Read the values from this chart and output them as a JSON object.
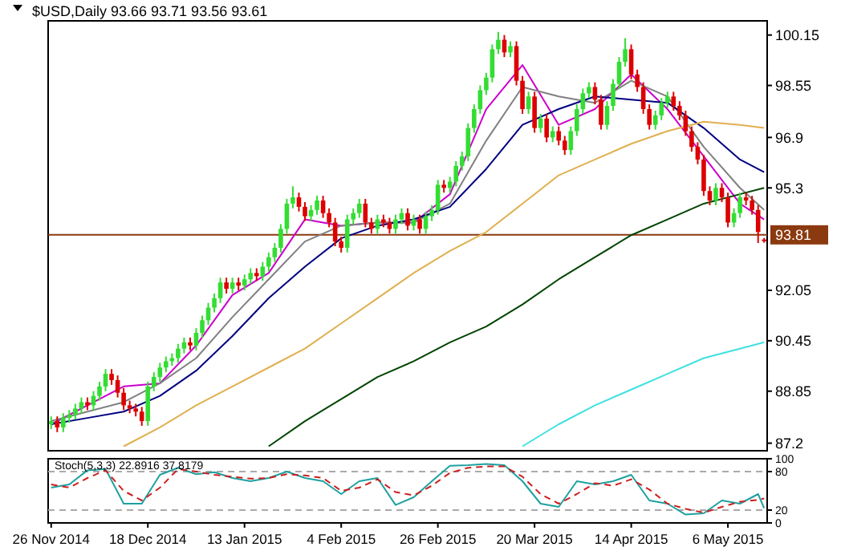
{
  "chart_data": [
    {
      "type": "candlestick",
      "title": "$USD,Daily  93.66 93.71 93.56 93.61",
      "categories": [
        null,
        null,
        null,
        null,
        null,
        null,
        null,
        null,
        null,
        null,
        null,
        null,
        null,
        null,
        null,
        null,
        null,
        null,
        null,
        null,
        null,
        null,
        null,
        null,
        null,
        null,
        null,
        null,
        null,
        null,
        null,
        null,
        null,
        null,
        null,
        null,
        null,
        null,
        null,
        null,
        null,
        null,
        null,
        null,
        null,
        null,
        null,
        null,
        null,
        null,
        null,
        null,
        null,
        null,
        null,
        null,
        null,
        null,
        null,
        null,
        null,
        null,
        null,
        null,
        null,
        null,
        null,
        null,
        null,
        null,
        null,
        null,
        null,
        null,
        null,
        null,
        null,
        null,
        null,
        null,
        null,
        null,
        null,
        null,
        null,
        null,
        null,
        null,
        null,
        null,
        null,
        null,
        null,
        null,
        null,
        null,
        null,
        null,
        null,
        null,
        null,
        null,
        null,
        null,
        null,
        null,
        null,
        null,
        null,
        null,
        null,
        null,
        null,
        null,
        null,
        null,
        null,
        null,
        null
      ],
      "ohlc": [
        [
          87.8,
          88.05,
          87.65,
          87.9
        ],
        [
          87.9,
          88.05,
          87.55,
          87.7
        ],
        [
          87.7,
          88.15,
          87.55,
          88.0
        ],
        [
          88.0,
          88.25,
          87.85,
          88.1
        ],
        [
          88.1,
          88.45,
          87.95,
          88.3
        ],
        [
          88.3,
          88.65,
          88.15,
          88.5
        ],
        [
          88.5,
          88.65,
          88.25,
          88.4
        ],
        [
          88.4,
          88.85,
          88.25,
          88.7
        ],
        [
          88.7,
          89.15,
          88.55,
          89.0
        ],
        [
          89.0,
          89.55,
          88.85,
          89.4
        ],
        [
          89.4,
          89.55,
          89.05,
          89.2
        ],
        [
          89.2,
          89.35,
          88.65,
          88.8
        ],
        [
          88.8,
          88.95,
          88.25,
          88.4
        ],
        [
          88.4,
          88.55,
          88.15,
          88.3
        ],
        [
          88.3,
          88.45,
          88.05,
          88.2
        ],
        [
          88.2,
          88.35,
          87.75,
          87.9
        ],
        [
          87.9,
          89.15,
          87.75,
          89.0
        ],
        [
          89.0,
          89.45,
          88.85,
          89.3
        ],
        [
          89.3,
          89.75,
          89.15,
          89.6
        ],
        [
          89.6,
          89.95,
          89.45,
          89.8
        ],
        [
          89.8,
          90.05,
          89.65,
          89.9
        ],
        [
          89.9,
          90.35,
          89.75,
          90.2
        ],
        [
          90.2,
          90.55,
          90.05,
          90.4
        ],
        [
          90.4,
          90.55,
          90.15,
          90.3
        ],
        [
          90.3,
          90.85,
          90.15,
          90.7
        ],
        [
          90.7,
          91.25,
          90.55,
          91.1
        ],
        [
          91.1,
          91.65,
          90.95,
          91.5
        ],
        [
          91.5,
          91.95,
          91.35,
          91.8
        ],
        [
          91.8,
          92.45,
          91.65,
          92.3
        ],
        [
          92.3,
          92.45,
          91.95,
          92.1
        ],
        [
          92.1,
          92.45,
          91.95,
          92.3
        ],
        [
          92.3,
          92.45,
          92.05,
          92.2
        ],
        [
          92.2,
          92.55,
          92.05,
          92.4
        ],
        [
          92.4,
          92.75,
          92.25,
          92.6
        ],
        [
          92.6,
          92.75,
          92.35,
          92.5
        ],
        [
          92.5,
          92.95,
          92.35,
          92.8
        ],
        [
          92.8,
          93.25,
          92.65,
          93.1
        ],
        [
          93.1,
          93.55,
          92.95,
          93.4
        ],
        [
          93.4,
          94.15,
          93.25,
          94.0
        ],
        [
          94.0,
          94.95,
          93.85,
          94.8
        ],
        [
          94.8,
          95.35,
          94.65,
          95.0
        ],
        [
          95.0,
          95.15,
          94.55,
          94.7
        ],
        [
          94.7,
          94.85,
          94.25,
          94.4
        ],
        [
          94.4,
          94.75,
          94.25,
          94.6
        ],
        [
          94.6,
          95.05,
          94.45,
          94.9
        ],
        [
          94.9,
          95.05,
          94.35,
          94.5
        ],
        [
          94.5,
          94.65,
          94.05,
          94.2
        ],
        [
          94.2,
          94.35,
          93.45,
          93.6
        ],
        [
          93.6,
          93.75,
          93.25,
          93.4
        ],
        [
          93.4,
          94.45,
          93.25,
          94.3
        ],
        [
          94.3,
          94.65,
          94.15,
          94.5
        ],
        [
          94.5,
          94.95,
          94.35,
          94.8
        ],
        [
          94.8,
          94.95,
          94.05,
          94.2
        ],
        [
          94.2,
          94.35,
          93.85,
          94.0
        ],
        [
          94.0,
          94.45,
          93.85,
          94.3
        ],
        [
          94.3,
          94.45,
          94.05,
          94.2
        ],
        [
          94.2,
          94.35,
          93.85,
          94.0
        ],
        [
          94.0,
          94.45,
          93.85,
          94.3
        ],
        [
          94.3,
          94.65,
          94.15,
          94.5
        ],
        [
          94.5,
          94.65,
          93.95,
          94.1
        ],
        [
          94.1,
          94.45,
          93.95,
          94.3
        ],
        [
          94.3,
          94.45,
          93.85,
          94.0
        ],
        [
          94.0,
          94.55,
          93.85,
          94.4
        ],
        [
          94.4,
          94.75,
          94.25,
          94.6
        ],
        [
          94.6,
          95.55,
          94.45,
          95.4
        ],
        [
          95.4,
          95.55,
          95.15,
          95.3
        ],
        [
          95.3,
          95.65,
          95.15,
          95.5
        ],
        [
          95.5,
          96.15,
          95.35,
          96.0
        ],
        [
          96.0,
          96.45,
          95.85,
          96.3
        ],
        [
          96.3,
          97.35,
          96.15,
          97.2
        ],
        [
          97.2,
          97.95,
          97.05,
          97.8
        ],
        [
          97.8,
          98.55,
          97.65,
          98.4
        ],
        [
          98.4,
          98.95,
          98.25,
          98.8
        ],
        [
          98.8,
          99.85,
          98.65,
          99.7
        ],
        [
          99.7,
          100.25,
          99.55,
          100.0
        ],
        [
          100.0,
          100.15,
          99.45,
          99.6
        ],
        [
          99.6,
          99.95,
          99.45,
          99.8
        ],
        [
          99.8,
          99.95,
          98.55,
          98.7
        ],
        [
          98.7,
          98.85,
          97.65,
          97.8
        ],
        [
          97.8,
          98.35,
          97.65,
          98.2
        ],
        [
          98.2,
          98.35,
          97.05,
          97.2
        ],
        [
          97.2,
          97.65,
          97.05,
          97.5
        ],
        [
          97.5,
          97.65,
          96.75,
          96.9
        ],
        [
          96.9,
          97.25,
          96.75,
          97.1
        ],
        [
          97.1,
          97.25,
          96.65,
          96.8
        ],
        [
          96.8,
          96.95,
          96.35,
          96.5
        ],
        [
          96.5,
          97.25,
          96.35,
          97.1
        ],
        [
          97.1,
          97.95,
          96.95,
          97.8
        ],
        [
          97.8,
          98.45,
          97.65,
          98.3
        ],
        [
          98.3,
          98.65,
          98.15,
          98.5
        ],
        [
          98.5,
          98.65,
          97.95,
          98.1
        ],
        [
          98.1,
          98.25,
          97.15,
          97.3
        ],
        [
          97.3,
          98.05,
          97.15,
          97.9
        ],
        [
          97.9,
          98.75,
          97.75,
          98.6
        ],
        [
          98.6,
          99.45,
          98.45,
          99.3
        ],
        [
          99.3,
          100.05,
          99.15,
          99.7
        ],
        [
          99.7,
          99.85,
          98.75,
          98.9
        ],
        [
          98.9,
          99.05,
          98.35,
          98.5
        ],
        [
          98.5,
          98.65,
          97.65,
          97.8
        ],
        [
          97.8,
          97.95,
          97.15,
          97.3
        ],
        [
          97.3,
          97.75,
          97.15,
          97.6
        ],
        [
          97.6,
          98.15,
          97.45,
          98.0
        ],
        [
          98.0,
          98.35,
          97.85,
          98.2
        ],
        [
          98.2,
          98.35,
          97.75,
          97.9
        ],
        [
          97.9,
          98.05,
          97.45,
          97.6
        ],
        [
          97.6,
          97.75,
          96.95,
          97.1
        ],
        [
          97.1,
          97.25,
          96.45,
          96.6
        ],
        [
          96.6,
          96.75,
          96.05,
          96.2
        ],
        [
          96.2,
          96.35,
          95.05,
          95.2
        ],
        [
          95.2,
          95.35,
          94.75,
          94.9
        ],
        [
          94.9,
          95.45,
          94.75,
          95.3
        ],
        [
          95.3,
          95.45,
          94.85,
          95.0
        ],
        [
          95.0,
          95.15,
          94.05,
          94.2
        ],
        [
          94.2,
          94.65,
          94.05,
          94.5
        ],
        [
          94.5,
          95.15,
          94.35,
          95.0
        ],
        [
          95.0,
          95.15,
          94.75,
          94.9
        ],
        [
          94.9,
          95.05,
          94.45,
          94.6
        ],
        [
          94.6,
          94.75,
          93.55,
          93.9
        ],
        [
          93.66,
          93.71,
          93.56,
          93.61
        ]
      ],
      "colors": [
        "#33dd33",
        "#dd0000",
        "#33dd33",
        "#33dd33",
        "#33dd33",
        "#33dd33",
        "#dd0000",
        "#33dd33",
        "#33dd33",
        "#33dd33",
        "#dd0000",
        "#dd0000",
        "#dd0000",
        "#dd0000",
        "#dd0000",
        "#dd0000",
        "#33dd33",
        "#33dd33",
        "#33dd33",
        "#33dd33",
        "#33dd33",
        "#33dd33",
        "#33dd33",
        "#dd0000",
        "#33dd33",
        "#33dd33",
        "#33dd33",
        "#33dd33",
        "#33dd33",
        "#dd0000",
        "#33dd33",
        "#dd0000",
        "#33dd33",
        "#33dd33",
        "#dd0000",
        "#33dd33",
        "#33dd33",
        "#33dd33",
        "#33dd33",
        "#33dd33",
        "#33dd33",
        "#dd0000",
        "#dd0000",
        "#33dd33",
        "#33dd33",
        "#dd0000",
        "#dd0000",
        "#dd0000",
        "#dd0000",
        "#33dd33",
        "#33dd33",
        "#33dd33",
        "#dd0000",
        "#dd0000",
        "#33dd33",
        "#dd0000",
        "#dd0000",
        "#33dd33",
        "#33dd33",
        "#dd0000",
        "#33dd33",
        "#dd0000",
        "#33dd33",
        "#33dd33",
        "#33dd33",
        "#dd0000",
        "#33dd33",
        "#33dd33",
        "#33dd33",
        "#33dd33",
        "#33dd33",
        "#33dd33",
        "#33dd33",
        "#33dd33",
        "#33dd33",
        "#dd0000",
        "#33dd33",
        "#dd0000",
        "#dd0000",
        "#33dd33",
        "#dd0000",
        "#33dd33",
        "#dd0000",
        "#33dd33",
        "#dd0000",
        "#dd0000",
        "#33dd33",
        "#33dd33",
        "#33dd33",
        "#33dd33",
        "#dd0000",
        "#dd0000",
        "#33dd33",
        "#33dd33",
        "#33dd33",
        "#33dd33",
        "#dd0000",
        "#dd0000",
        "#dd0000",
        "#dd0000",
        "#33dd33",
        "#33dd33",
        "#33dd33",
        "#dd0000",
        "#dd0000",
        "#dd0000",
        "#dd0000",
        "#dd0000",
        "#dd0000",
        "#dd0000",
        "#33dd33",
        "#dd0000",
        "#dd0000",
        "#33dd33",
        "#33dd33",
        "#dd0000",
        "#dd0000",
        "#dd0000",
        "#dd0000"
      ],
      "series": [
        {
          "type": "line",
          "color": "#cc00cc",
          "values": [
            87.8,
            null,
            null,
            null,
            null,
            null,
            88.4,
            null,
            null,
            null,
            null,
            null,
            89.0,
            null,
            null,
            null,
            null,
            null,
            89.1,
            null,
            null,
            null,
            null,
            null,
            90.3,
            null,
            null,
            null,
            null,
            null,
            91.9,
            null,
            null,
            null,
            null,
            null,
            92.6,
            null,
            null,
            null,
            null,
            null,
            94.3,
            null,
            null,
            null,
            null,
            null,
            94.1,
            null,
            null,
            null,
            null,
            null,
            94.2,
            null,
            null,
            null,
            null,
            null,
            94.2,
            null,
            null,
            null,
            null,
            null,
            95.1,
            null,
            null,
            null,
            null,
            null,
            97.8,
            null,
            null,
            null,
            null,
            null,
            99.2,
            null,
            null,
            null,
            null,
            null,
            97.3,
            null,
            null,
            null,
            null,
            null,
            97.8,
            null,
            null,
            null,
            null,
            null,
            98.9,
            null,
            null,
            null,
            null,
            null,
            97.8,
            null,
            null,
            null,
            null,
            null,
            96.3,
            null,
            null,
            null,
            null,
            null,
            94.8,
            null,
            null,
            null,
            94.3
          ]
        },
        {
          "type": "line",
          "color": "#808080",
          "values": [
            87.9,
            null,
            null,
            null,
            null,
            null,
            88.2,
            null,
            null,
            null,
            null,
            null,
            88.5,
            null,
            null,
            null,
            null,
            null,
            89.1,
            null,
            null,
            null,
            null,
            null,
            89.9,
            null,
            null,
            null,
            null,
            null,
            91.2,
            null,
            null,
            null,
            null,
            null,
            92.4,
            null,
            null,
            null,
            null,
            null,
            93.6,
            null,
            null,
            null,
            null,
            null,
            94.1,
            null,
            null,
            null,
            null,
            null,
            94.2,
            null,
            null,
            null,
            null,
            null,
            94.2,
            null,
            null,
            null,
            null,
            null,
            94.8,
            null,
            null,
            null,
            null,
            null,
            96.8,
            null,
            null,
            null,
            null,
            null,
            98.5,
            null,
            null,
            null,
            null,
            null,
            98.2,
            null,
            null,
            null,
            null,
            null,
            98.0,
            null,
            null,
            null,
            null,
            null,
            98.7,
            null,
            null,
            null,
            null,
            null,
            98.2,
            null,
            null,
            null,
            null,
            null,
            96.6,
            null,
            null,
            null,
            null,
            null,
            95.3,
            null,
            null,
            null,
            94.6
          ]
        },
        {
          "type": "line",
          "color": "#000080",
          "values": [
            87.8,
            null,
            null,
            null,
            null,
            null,
            88.0,
            null,
            null,
            null,
            null,
            null,
            88.2,
            null,
            null,
            null,
            null,
            null,
            88.7,
            null,
            null,
            null,
            null,
            null,
            89.5,
            null,
            null,
            null,
            null,
            null,
            90.6,
            null,
            null,
            null,
            null,
            null,
            91.8,
            null,
            null,
            null,
            null,
            null,
            92.8,
            null,
            null,
            null,
            null,
            null,
            93.7,
            null,
            null,
            null,
            null,
            null,
            94.1,
            null,
            null,
            null,
            null,
            null,
            94.3,
            null,
            null,
            null,
            null,
            null,
            94.7,
            null,
            null,
            null,
            null,
            null,
            95.9,
            null,
            null,
            null,
            null,
            null,
            97.3,
            null,
            null,
            null,
            null,
            null,
            97.8,
            null,
            null,
            null,
            null,
            null,
            98.2,
            null,
            null,
            null,
            null,
            null,
            98.1,
            null,
            null,
            null,
            null,
            null,
            98.0,
            null,
            null,
            null,
            null,
            null,
            97.2,
            null,
            null,
            null,
            null,
            null,
            96.2,
            null,
            null,
            null,
            95.8
          ]
        },
        {
          "type": "line",
          "color": "#e0b050",
          "values": [
            null,
            null,
            null,
            null,
            null,
            null,
            null,
            null,
            null,
            null,
            null,
            null,
            87.1,
            null,
            null,
            null,
            null,
            null,
            87.7,
            null,
            null,
            null,
            null,
            null,
            88.4,
            null,
            null,
            null,
            null,
            null,
            89.0,
            null,
            null,
            null,
            null,
            null,
            89.6,
            null,
            null,
            null,
            null,
            null,
            90.2,
            null,
            null,
            null,
            null,
            null,
            91.0,
            null,
            null,
            null,
            null,
            null,
            91.8,
            null,
            null,
            null,
            null,
            null,
            92.6,
            null,
            null,
            null,
            null,
            null,
            93.3,
            null,
            null,
            null,
            null,
            null,
            93.9,
            null,
            null,
            null,
            null,
            null,
            94.8,
            null,
            null,
            null,
            null,
            null,
            95.7,
            null,
            null,
            null,
            null,
            null,
            96.2,
            null,
            null,
            null,
            null,
            null,
            96.7,
            null,
            null,
            null,
            null,
            null,
            97.1,
            null,
            null,
            null,
            null,
            null,
            97.4,
            null,
            null,
            null,
            null,
            null,
            97.3,
            null,
            null,
            null,
            97.2
          ]
        },
        {
          "type": "line",
          "color": "#004400",
          "values": [
            null,
            null,
            null,
            null,
            null,
            null,
            null,
            null,
            null,
            null,
            null,
            null,
            null,
            null,
            null,
            null,
            null,
            null,
            null,
            null,
            null,
            null,
            null,
            null,
            null,
            null,
            null,
            null,
            null,
            null,
            null,
            null,
            null,
            null,
            null,
            null,
            87.1,
            null,
            null,
            null,
            null,
            null,
            87.9,
            null,
            null,
            null,
            null,
            null,
            88.6,
            null,
            null,
            null,
            null,
            null,
            89.3,
            null,
            null,
            null,
            null,
            null,
            89.8,
            null,
            null,
            null,
            null,
            null,
            90.4,
            null,
            null,
            null,
            null,
            null,
            90.9,
            null,
            null,
            null,
            null,
            null,
            91.6,
            null,
            null,
            null,
            null,
            null,
            92.4,
            null,
            null,
            null,
            null,
            null,
            93.1,
            null,
            null,
            null,
            null,
            null,
            93.8,
            null,
            null,
            null,
            null,
            null,
            94.3,
            null,
            null,
            null,
            null,
            null,
            94.8,
            null,
            null,
            null,
            null,
            null,
            95.1,
            null,
            null,
            null,
            95.3
          ]
        },
        {
          "type": "line",
          "color": "#40e0e0",
          "values": [
            null,
            null,
            null,
            null,
            null,
            null,
            null,
            null,
            null,
            null,
            null,
            null,
            null,
            null,
            null,
            null,
            null,
            null,
            null,
            null,
            null,
            null,
            null,
            null,
            null,
            null,
            null,
            null,
            null,
            null,
            null,
            null,
            null,
            null,
            null,
            null,
            null,
            null,
            null,
            null,
            null,
            null,
            null,
            null,
            null,
            null,
            null,
            null,
            null,
            null,
            null,
            null,
            null,
            null,
            null,
            null,
            null,
            null,
            null,
            null,
            null,
            null,
            null,
            null,
            null,
            null,
            null,
            null,
            null,
            null,
            null,
            null,
            null,
            null,
            null,
            null,
            null,
            null,
            87.1,
            null,
            null,
            null,
            null,
            null,
            87.8,
            null,
            null,
            null,
            null,
            null,
            88.4,
            null,
            null,
            null,
            null,
            null,
            88.9,
            null,
            null,
            null,
            null,
            null,
            89.4,
            null,
            null,
            null,
            null,
            null,
            89.9,
            null,
            null,
            null,
            null,
            null,
            90.2,
            null,
            null,
            null,
            90.4
          ]
        }
      ],
      "ylim": [
        86.96,
        100.6
      ],
      "yticks": [
        87.2,
        88.85,
        90.45,
        92.05,
        95.3,
        96.9,
        98.55,
        100.15
      ],
      "ref_lines": [
        {
          "axis": "y",
          "value": 93.81,
          "label": "93.81",
          "color": "#8b3a0f"
        }
      ],
      "tick_labels": "y"
    },
    {
      "type": "line",
      "title": "Stoch(5,3,3) 22.8916 37.8179",
      "categories": [
        "26 Nov 2014",
        null,
        null,
        null,
        null,
        null,
        null,
        null,
        null,
        null,
        null,
        null,
        null,
        null,
        null,
        null,
        "18 Dec 2014",
        null,
        null,
        null,
        null,
        null,
        null,
        null,
        null,
        null,
        null,
        null,
        null,
        null,
        null,
        null,
        "13 Jan 2015",
        null,
        null,
        null,
        null,
        null,
        null,
        null,
        null,
        null,
        null,
        null,
        null,
        null,
        null,
        null,
        "4 Feb 2015",
        null,
        null,
        null,
        null,
        null,
        null,
        null,
        null,
        null,
        null,
        null,
        null,
        null,
        null,
        null,
        "26 Feb 2015",
        null,
        null,
        null,
        null,
        null,
        null,
        null,
        null,
        null,
        null,
        null,
        null,
        null,
        null,
        null,
        "20 Mar 2015",
        null,
        null,
        null,
        null,
        null,
        null,
        null,
        null,
        null,
        null,
        null,
        null,
        null,
        null,
        null,
        "14 Apr 2015",
        null,
        null,
        null,
        null,
        null,
        null,
        null,
        null,
        null,
        null,
        null,
        null,
        null,
        null,
        null,
        "6 May 2015",
        null,
        null,
        null,
        null,
        null,
        null
      ],
      "series": [
        {
          "color": "#20a0a0",
          "line_style": "solid",
          "values": [
            55,
            null,
            null,
            60,
            null,
            null,
            82,
            null,
            null,
            84,
            null,
            null,
            30,
            null,
            null,
            30,
            null,
            null,
            75,
            null,
            null,
            86,
            null,
            null,
            76,
            null,
            null,
            79,
            null,
            null,
            70,
            null,
            null,
            65,
            null,
            null,
            70,
            null,
            null,
            80,
            null,
            null,
            70,
            null,
            null,
            65,
            null,
            null,
            45,
            null,
            null,
            65,
            null,
            null,
            70,
            null,
            null,
            28,
            null,
            null,
            40,
            null,
            null,
            65,
            null,
            null,
            89,
            null,
            null,
            90,
            null,
            null,
            92,
            null,
            null,
            90,
            null,
            null,
            65,
            null,
            null,
            30,
            null,
            null,
            25,
            null,
            null,
            65,
            null,
            null,
            60,
            null,
            null,
            65,
            null,
            null,
            75,
            null,
            null,
            35,
            null,
            null,
            30,
            null,
            null,
            13,
            null,
            null,
            15,
            null,
            null,
            35,
            null,
            null,
            30,
            null,
            null,
            45,
            23
          ]
        },
        {
          "color": "#cc2020",
          "line_style": "dashed",
          "values": [
            60,
            null,
            null,
            55,
            null,
            null,
            70,
            null,
            null,
            82,
            null,
            null,
            50,
            null,
            null,
            35,
            null,
            null,
            55,
            null,
            null,
            84,
            null,
            null,
            80,
            null,
            null,
            75,
            null,
            null,
            72,
            null,
            null,
            69,
            null,
            null,
            70,
            null,
            null,
            76,
            null,
            null,
            74,
            null,
            null,
            70,
            null,
            null,
            50,
            null,
            null,
            55,
            null,
            null,
            68,
            null,
            null,
            48,
            null,
            null,
            43,
            null,
            null,
            58,
            null,
            null,
            78,
            null,
            null,
            86,
            null,
            null,
            88,
            null,
            null,
            88,
            null,
            null,
            72,
            null,
            null,
            45,
            null,
            null,
            30,
            null,
            null,
            45,
            null,
            null,
            62,
            null,
            null,
            58,
            null,
            null,
            68,
            null,
            null,
            52,
            null,
            null,
            30,
            null,
            null,
            22,
            null,
            null,
            16,
            null,
            null,
            25,
            null,
            null,
            33,
            null,
            null,
            36,
            38
          ]
        }
      ],
      "ylim": [
        0,
        100
      ],
      "yticks": [
        0,
        20,
        80,
        100
      ],
      "ref_lines": [
        {
          "axis": "y",
          "value": 20,
          "color": "#aaaaaa",
          "line_style": "dashed"
        },
        {
          "axis": "y",
          "value": 80,
          "color": "#aaaaaa",
          "line_style": "dashed"
        }
      ],
      "tick_labels": true
    }
  ]
}
